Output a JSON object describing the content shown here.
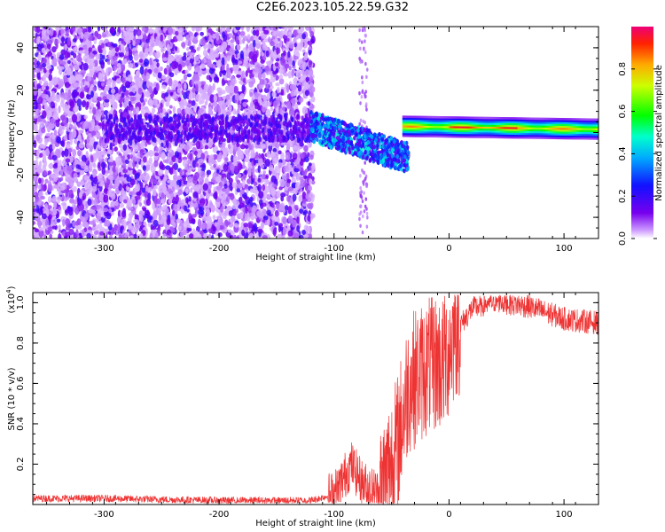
{
  "title": "C2E6.2023.105.22.59.G32",
  "chart_data": [
    {
      "type": "heatmap",
      "xlabel": "Height of straight line (km)",
      "ylabel": "Frequency (Hz)",
      "xlim": [
        -362,
        130
      ],
      "ylim": [
        -50,
        50
      ],
      "x_ticks": [
        "-300",
        "-200",
        "-100",
        "0",
        "100"
      ],
      "y_ticks": [
        "40",
        "20",
        "0",
        "-20",
        "-40"
      ],
      "colorbar": {
        "label": "Normalized spectral amplitude",
        "range": [
          0.0,
          1.0
        ],
        "ticks": [
          "0.0",
          "0.2",
          "0.4",
          "0.6",
          "0.8"
        ]
      },
      "grid": false
    },
    {
      "type": "line",
      "xlabel": "Height of straight line (km)",
      "ylabel": "SNR (10 * v/v)",
      "multiplier": "(x10^4)",
      "xlim": [
        -362,
        130
      ],
      "ylim": [
        0.0,
        1.05
      ],
      "x_ticks": [
        "-300",
        "-200",
        "-100",
        "0",
        "100"
      ],
      "y_ticks": [
        "1.0",
        "0.8",
        "0.6",
        "0.4",
        "0.2"
      ],
      "series_color": "#ee3333",
      "grid": false,
      "approx_points": [
        {
          "x": -362,
          "y": 0.03
        },
        {
          "x": -300,
          "y": 0.03
        },
        {
          "x": -200,
          "y": 0.02
        },
        {
          "x": -120,
          "y": 0.02
        },
        {
          "x": -100,
          "y": 0.05
        },
        {
          "x": -85,
          "y": 0.2
        },
        {
          "x": -75,
          "y": 0.1
        },
        {
          "x": -60,
          "y": 0.05
        },
        {
          "x": -45,
          "y": 0.3
        },
        {
          "x": -35,
          "y": 0.6
        },
        {
          "x": -25,
          "y": 0.65
        },
        {
          "x": -15,
          "y": 0.7
        },
        {
          "x": -5,
          "y": 0.7
        },
        {
          "x": 5,
          "y": 0.85
        },
        {
          "x": 20,
          "y": 0.97
        },
        {
          "x": 40,
          "y": 1.01
        },
        {
          "x": 70,
          "y": 0.98
        },
        {
          "x": 100,
          "y": 0.92
        },
        {
          "x": 130,
          "y": 0.9
        }
      ]
    }
  ]
}
